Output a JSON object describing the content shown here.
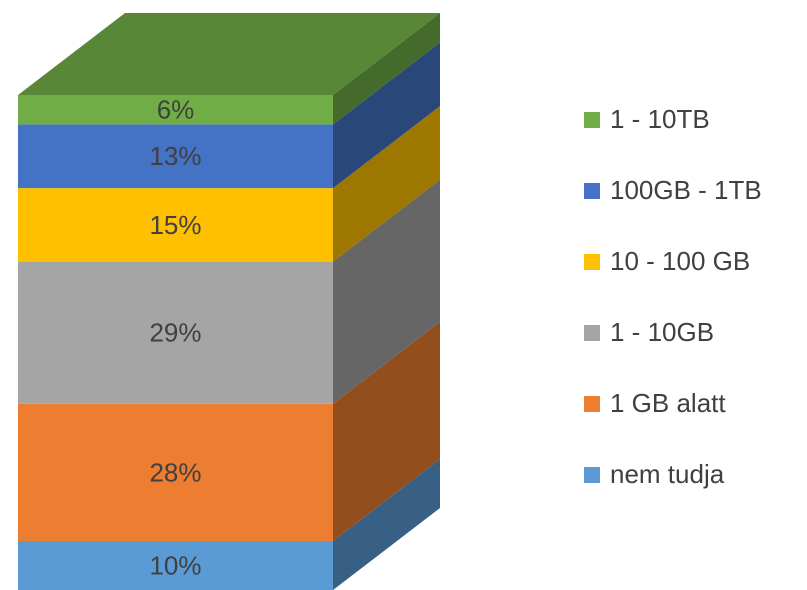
{
  "chart_data": {
    "type": "bar3d-stacked",
    "series": [
      {
        "name": "nem tudja",
        "color": "#5b9bd5",
        "values": [
          10
        ],
        "value_labels": [
          "10%"
        ]
      },
      {
        "name": "1 GB alatt",
        "color": "#ed7d31",
        "values": [
          28
        ],
        "value_labels": [
          "28%"
        ]
      },
      {
        "name": "1 - 10GB",
        "color": "#a5a5a5",
        "values": [
          29
        ],
        "value_labels": [
          "29%"
        ]
      },
      {
        "name": "10 - 100 GB",
        "color": "#ffc000",
        "values": [
          15
        ],
        "value_labels": [
          "15%"
        ]
      },
      {
        "name": "100GB - 1TB",
        "color": "#4472c4",
        "values": [
          13
        ],
        "value_labels": [
          "13%"
        ]
      },
      {
        "name": "1 - 10TB",
        "color": "#70ad47",
        "values": [
          6
        ],
        "value_labels": [
          "6%"
        ]
      }
    ]
  }
}
